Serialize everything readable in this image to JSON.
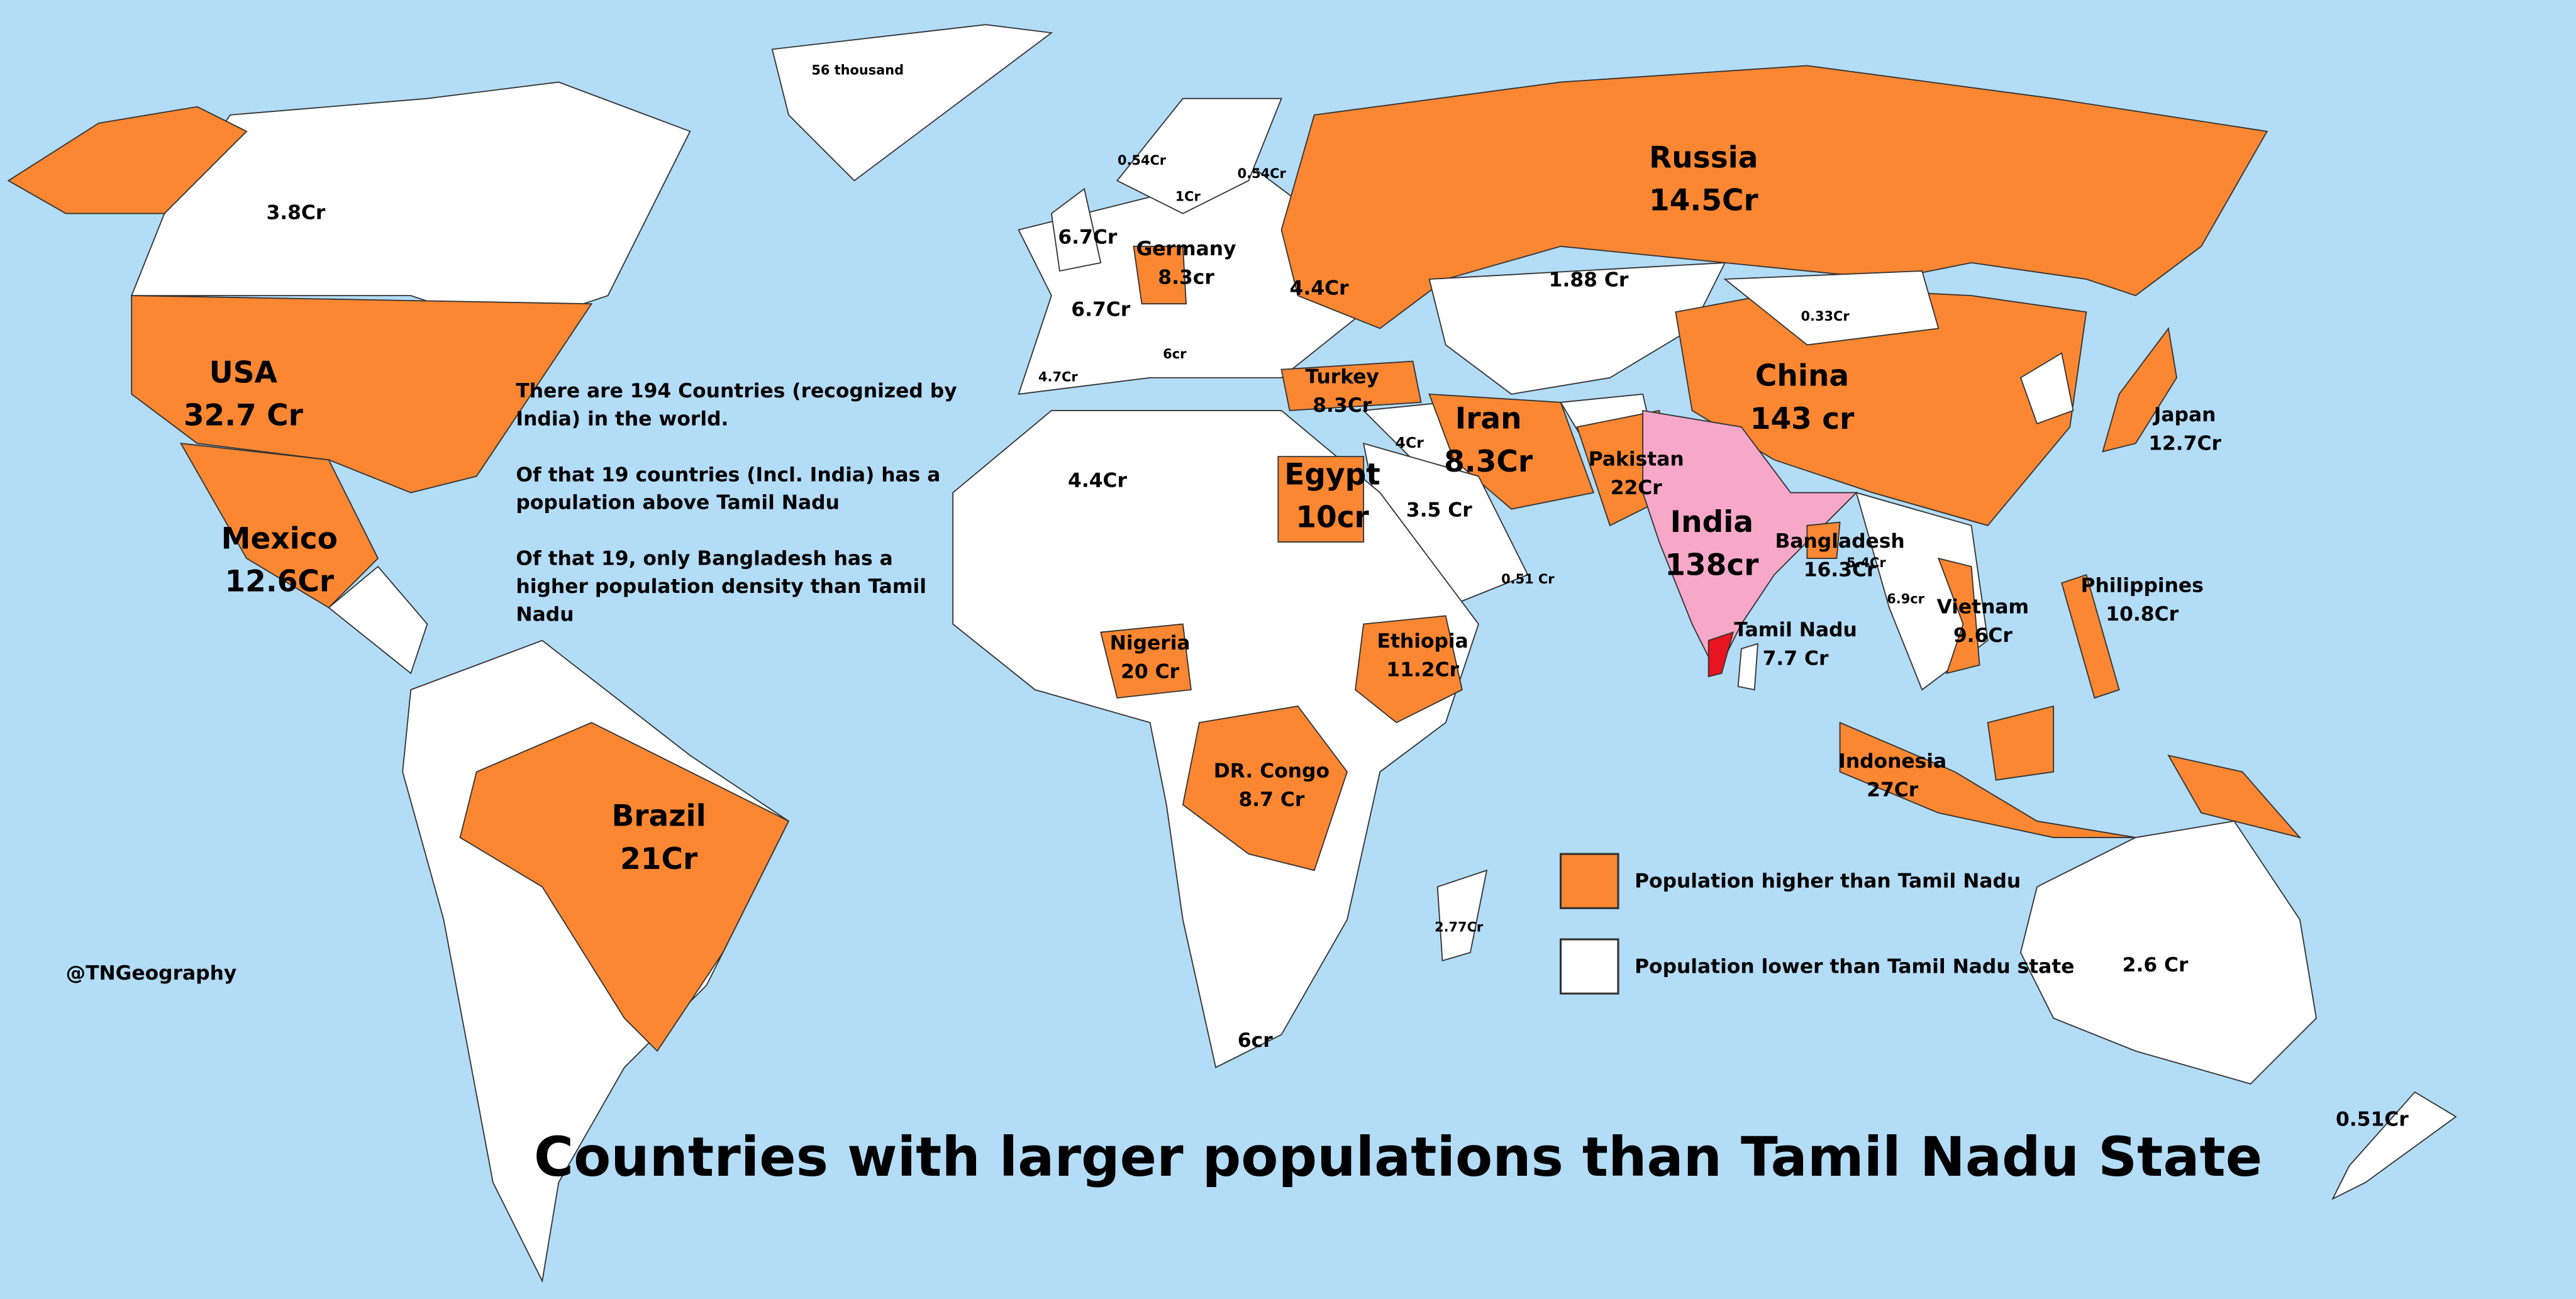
{
  "title": "Countries with larger populations than Tamil Nadu State",
  "notes": [
    "There are 194 Countries (recognized by India) in the world.",
    "Of that 19 countries (Incl. India) has a population above Tamil Nadu",
    "Of that 19, only Bangladesh has a higher population density than Tamil Nadu"
  ],
  "legend": [
    {
      "label": "Population higher than Tamil Nadu",
      "color": "#fb8732"
    },
    {
      "label": "Population lower than Tamil Nadu state",
      "color": "#ffffff"
    }
  ],
  "credit": "@TNGeography",
  "labels": [
    {
      "value": "56 thousand"
    },
    {
      "value": "3.8Cr"
    },
    {
      "value": "0.54Cr"
    },
    {
      "value": "0.54Cr"
    },
    {
      "value": "1Cr"
    },
    {
      "value": "6.7Cr"
    },
    {
      "name": "Germany",
      "value": "8.3cr"
    },
    {
      "value": "6.7Cr"
    },
    {
      "value": "4.4Cr"
    },
    {
      "value": "6cr"
    },
    {
      "value": "4.7Cr"
    },
    {
      "name": "Russia",
      "value": "14.5Cr"
    },
    {
      "value": "1.88 Cr"
    },
    {
      "value": "0.33Cr"
    },
    {
      "name": "China",
      "value": "143 cr"
    },
    {
      "name": "USA",
      "value": "32.7 Cr"
    },
    {
      "name": "Turkey",
      "value": "8.3Cr"
    },
    {
      "name": "Japan",
      "value": "12.7Cr"
    },
    {
      "name": "Iran",
      "value": "8.3Cr"
    },
    {
      "value": "4Cr"
    },
    {
      "name": "Pakistan",
      "value": "22Cr"
    },
    {
      "value": "4.4Cr"
    },
    {
      "name": "Egypt",
      "value": "10cr"
    },
    {
      "value": "3.5 Cr"
    },
    {
      "name": "India",
      "value": "138cr"
    },
    {
      "name": "Mexico",
      "value": "12.6Cr"
    },
    {
      "name": "Bangladesh",
      "value": "16.3Cr"
    },
    {
      "value": "5.4Cr"
    },
    {
      "value": "0.51 Cr"
    },
    {
      "name": "Philippines",
      "value": "10.8Cr"
    },
    {
      "value": "6.9cr"
    },
    {
      "name": "Vietnam",
      "value": "9.6Cr"
    },
    {
      "name": "Tamil Nadu",
      "value": "7.7 Cr"
    },
    {
      "name": "Nigeria",
      "value": "20 Cr"
    },
    {
      "name": "Ethiopia",
      "value": "11.2Cr"
    },
    {
      "name": "DR. Congo",
      "value": "8.7 Cr"
    },
    {
      "name": "Indonesia",
      "value": "27Cr"
    },
    {
      "name": "Brazil",
      "value": "21Cr"
    },
    {
      "value": "2.77Cr"
    },
    {
      "value": "2.6 Cr"
    },
    {
      "value": "6cr"
    },
    {
      "value": "0.51Cr"
    }
  ]
}
